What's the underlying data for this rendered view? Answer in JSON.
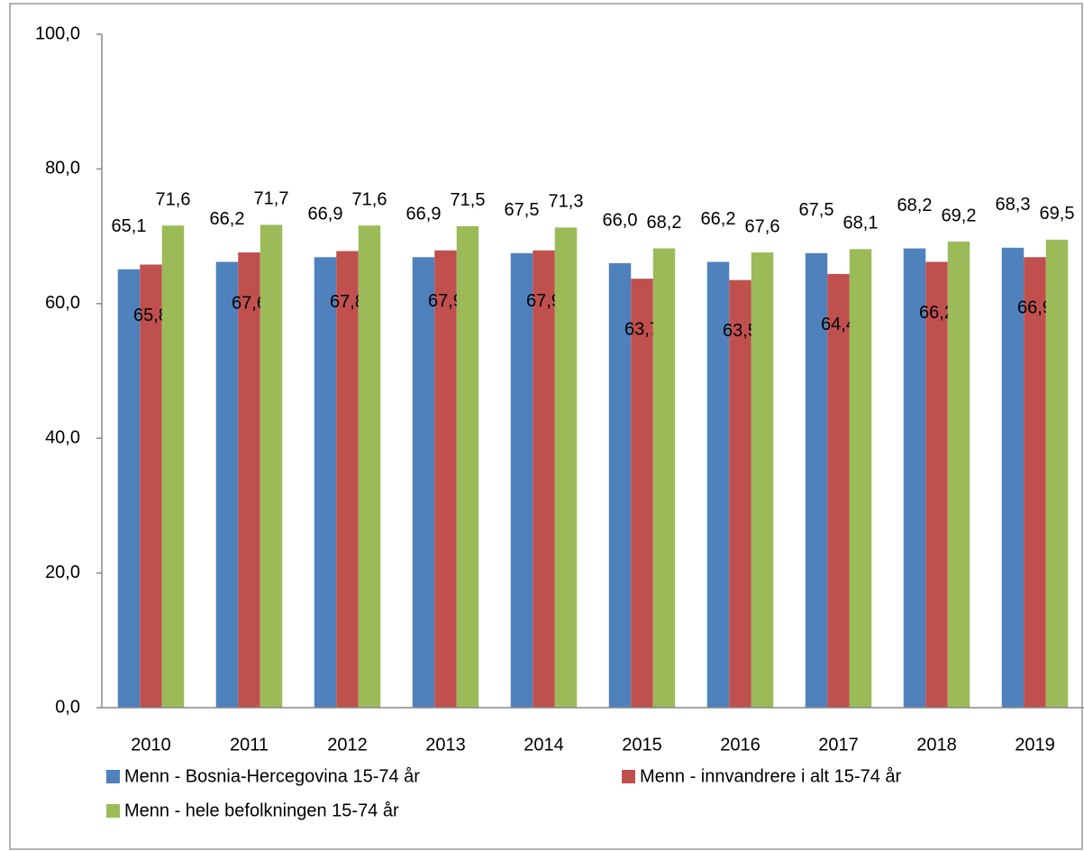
{
  "chart_data": {
    "type": "bar",
    "categories": [
      "2010",
      "2011",
      "2012",
      "2013",
      "2014",
      "2015",
      "2016",
      "2017",
      "2018",
      "2019"
    ],
    "series": [
      {
        "name": "Menn - Bosnia-Hercegovina 15-74 år",
        "color": "#4f81bd",
        "values": [
          65.1,
          66.2,
          66.9,
          66.9,
          67.5,
          66.0,
          66.2,
          67.5,
          68.2,
          68.3
        ],
        "value_labels": [
          "65,1",
          "66,2",
          "66,9",
          "66,9",
          "67,5",
          "66,0",
          "66,2",
          "67,5",
          "68,2",
          "68,3"
        ]
      },
      {
        "name": "Menn - innvandrere i alt 15-74 år",
        "color": "#c0504d",
        "values": [
          65.8,
          67.6,
          67.8,
          67.9,
          67.9,
          63.7,
          63.5,
          64.4,
          66.2,
          66.9
        ],
        "value_labels": [
          "65,8",
          "67,6",
          "67,8",
          "67,9",
          "67,9",
          "63,7",
          "63,5",
          "64,4",
          "66,2",
          "66,9"
        ]
      },
      {
        "name": "Menn - hele befolkningen 15-74 år",
        "color": "#9bbb59",
        "values": [
          71.6,
          71.7,
          71.6,
          71.5,
          71.3,
          68.2,
          67.6,
          68.1,
          69.2,
          69.5
        ],
        "value_labels": [
          "71,6",
          "71,7",
          "71,6",
          "71,5",
          "71,3",
          "68,2",
          "67,6",
          "68,1",
          "69,2",
          "69,5"
        ]
      }
    ],
    "ylim": [
      0,
      100
    ],
    "yticks": [
      {
        "value": 0,
        "label": "0,0"
      },
      {
        "value": 20,
        "label": "20,0"
      },
      {
        "value": 40,
        "label": "40,0"
      },
      {
        "value": 60,
        "label": "60,0"
      },
      {
        "value": 80,
        "label": "80,0"
      },
      {
        "value": 100,
        "label": "100,0"
      }
    ],
    "grid": false
  }
}
